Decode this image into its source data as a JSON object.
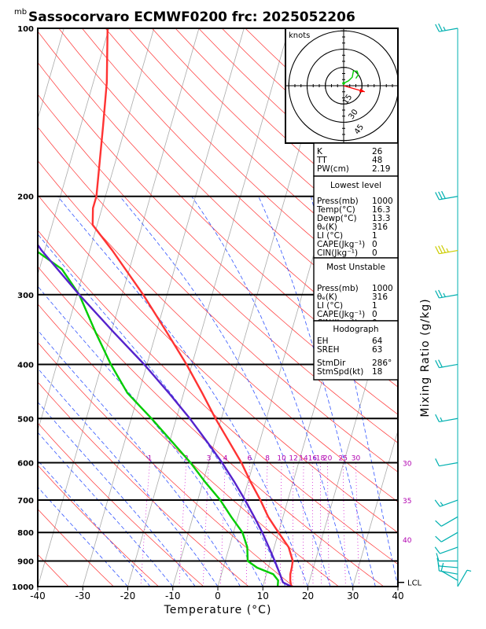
{
  "title": "Sassocorvaro ECMWF0200  frc: 2025052206",
  "pressure_unit_label": "mb",
  "chart_data": {
    "type": "line",
    "subtype": "skew-T log-P sounding",
    "xlabel": "Temperature (°C)",
    "ylabel_right": "Mixing Ratio (g/kg)",
    "xlim": [
      -40,
      40
    ],
    "ylim": [
      1000,
      100
    ],
    "x_ticks": [
      -40,
      -30,
      -20,
      -10,
      0,
      10,
      20,
      30,
      40
    ],
    "y_ticks": [
      100,
      200,
      300,
      400,
      500,
      600,
      700,
      800,
      900,
      1000
    ],
    "mixing_ratio_labels": [
      "1",
      "2",
      "3",
      "4",
      "6",
      "8",
      "10",
      "12",
      "14",
      "16",
      "18",
      "20",
      "25",
      "30"
    ],
    "mixing_ratio_values": [
      1,
      2,
      3,
      4,
      6,
      8,
      10,
      12,
      14,
      16,
      18,
      20,
      25,
      30
    ],
    "thetae_labels": [
      {
        "label": "30",
        "p": 600
      },
      {
        "label": "35",
        "p": 700
      },
      {
        "label": "40",
        "p": 823
      }
    ],
    "lcl_label": "LCL",
    "lcl_pressure": 983,
    "series": [
      {
        "color": "#ff3333",
        "points": [
          {
            "p": 1000,
            "t": 16.3
          },
          {
            "p": 975,
            "t": 15.7
          },
          {
            "p": 950,
            "t": 15.3
          },
          {
            "p": 925,
            "t": 15.2
          },
          {
            "p": 900,
            "t": 15.0
          },
          {
            "p": 850,
            "t": 13.2
          },
          {
            "p": 800,
            "t": 10.0
          },
          {
            "p": 750,
            "t": 6.7
          },
          {
            "p": 700,
            "t": 3.9
          },
          {
            "p": 650,
            "t": 0.6
          },
          {
            "p": 600,
            "t": -2.7
          },
          {
            "p": 550,
            "t": -6.8
          },
          {
            "p": 500,
            "t": -11.3
          },
          {
            "p": 450,
            "t": -15.9
          },
          {
            "p": 400,
            "t": -21.2
          },
          {
            "p": 350,
            "t": -27.7
          },
          {
            "p": 300,
            "t": -35.3
          },
          {
            "p": 250,
            "t": -45.0
          },
          {
            "p": 225,
            "t": -51.0
          },
          {
            "p": 210,
            "t": -52.0
          },
          {
            "p": 200,
            "t": -52.0
          },
          {
            "p": 150,
            "t": -55.0
          },
          {
            "p": 125,
            "t": -57.0
          },
          {
            "p": 100,
            "t": -60.3
          }
        ]
      },
      {
        "color": "#00cc00",
        "points": [
          {
            "p": 1000,
            "t": 13.3
          },
          {
            "p": 975,
            "t": 13.0
          },
          {
            "p": 950,
            "t": 11.5
          },
          {
            "p": 925,
            "t": 7.5
          },
          {
            "p": 900,
            "t": 5.0
          },
          {
            "p": 850,
            "t": 4.0
          },
          {
            "p": 800,
            "t": 2.0
          },
          {
            "p": 750,
            "t": -1.5
          },
          {
            "p": 700,
            "t": -5.0
          },
          {
            "p": 650,
            "t": -9.5
          },
          {
            "p": 600,
            "t": -14.0
          },
          {
            "p": 550,
            "t": -19.5
          },
          {
            "p": 500,
            "t": -25.5
          },
          {
            "p": 450,
            "t": -32.5
          },
          {
            "p": 400,
            "t": -38.0
          },
          {
            "p": 350,
            "t": -43.5
          },
          {
            "p": 300,
            "t": -49.5
          },
          {
            "p": 270,
            "t": -55.0
          },
          {
            "p": 250,
            "t": -62.0
          },
          {
            "p": 200,
            "t": -72.0
          },
          {
            "p": 150,
            "t": -80.0
          },
          {
            "p": 100,
            "t": -90.0
          }
        ]
      },
      {
        "color": "#5522cc",
        "points": [
          {
            "p": 1000,
            "t": 16.3
          },
          {
            "p": 983,
            "t": 14.2
          },
          {
            "p": 950,
            "t": 13.0
          },
          {
            "p": 900,
            "t": 11.0
          },
          {
            "p": 850,
            "t": 8.8
          },
          {
            "p": 800,
            "t": 6.4
          },
          {
            "p": 750,
            "t": 3.6
          },
          {
            "p": 700,
            "t": 0.5
          },
          {
            "p": 650,
            "t": -3.0
          },
          {
            "p": 600,
            "t": -7.0
          },
          {
            "p": 550,
            "t": -11.7
          },
          {
            "p": 500,
            "t": -17.0
          },
          {
            "p": 450,
            "t": -23.3
          },
          {
            "p": 400,
            "t": -30.6
          },
          {
            "p": 350,
            "t": -39.5
          },
          {
            "p": 300,
            "t": -49.5
          },
          {
            "p": 250,
            "t": -60.7
          },
          {
            "p": 200,
            "t": -72.5
          },
          {
            "p": 150,
            "t": -87.0
          },
          {
            "p": 100,
            "t": -107.0
          }
        ]
      }
    ]
  },
  "hodograph": {
    "units_label": "knots",
    "ring_labels": [
      "15",
      "30",
      "45"
    ],
    "ring_values_kt": [
      15,
      30,
      45
    ],
    "trace_kt": [
      [
        0,
        2
      ],
      [
        4,
        4
      ],
      [
        7,
        7
      ],
      [
        8,
        12
      ],
      [
        11,
        12
      ],
      [
        12,
        9
      ],
      [
        10,
        6
      ]
    ],
    "storm_motion_kt": [
      17.3,
      -5.0
    ]
  },
  "indices": {
    "basic": [
      {
        "label": "K",
        "value": "26"
      },
      {
        "label": "TT",
        "value": "48"
      },
      {
        "label": "PW(cm)",
        "value": "2.19"
      }
    ],
    "lowest_level": {
      "header": "Lowest level",
      "rows": [
        {
          "label": "Press(mb)",
          "value": "1000"
        },
        {
          "label": "Temp(°C)",
          "value": "16.3"
        },
        {
          "label": "Dewp(°C)",
          "value": "13.3"
        },
        {
          "label": "θₑ(K)",
          "value": "316"
        },
        {
          "label": "LI (°C)",
          "value": "1"
        },
        {
          "label": "CAPE(Jkg⁻¹)",
          "value": "0"
        },
        {
          "label": "CIN(Jkg⁻¹)",
          "value": "0"
        }
      ]
    },
    "most_unstable": {
      "header": "Most Unstable",
      "rows": [
        {
          "label": "Press(mb)",
          "value": "1000"
        },
        {
          "label": "θₑ(K)",
          "value": "316"
        },
        {
          "label": "LI (°C)",
          "value": "1"
        },
        {
          "label": "CAPE(Jkg⁻¹)",
          "value": "0"
        },
        {
          "label": "CIN(Jkg⁻¹)",
          "value": "0"
        }
      ]
    },
    "hodograph_box": {
      "header": "Hodograph",
      "rows": [
        {
          "label": "EH",
          "value": "64"
        },
        {
          "label": "SREH",
          "value": "63"
        },
        {
          "label": "StmDir",
          "value": "286°"
        },
        {
          "label": "StmSpd(kt)",
          "value": "18"
        }
      ]
    }
  },
  "wind_barbs": [
    {
      "p": 1000,
      "dir": 30,
      "kt": 5
    },
    {
      "p": 975,
      "dir": 300,
      "kt": 10
    },
    {
      "p": 950,
      "dir": 280,
      "kt": 10
    },
    {
      "p": 925,
      "dir": 275,
      "kt": 10
    },
    {
      "p": 900,
      "dir": 270,
      "kt": 10
    },
    {
      "p": 850,
      "dir": 250,
      "kt": 10
    },
    {
      "p": 800,
      "dir": 240,
      "kt": 10
    },
    {
      "p": 750,
      "dir": 240,
      "kt": 10
    },
    {
      "p": 700,
      "dir": 250,
      "kt": 15
    },
    {
      "p": 600,
      "dir": 260,
      "kt": 10
    },
    {
      "p": 500,
      "dir": 260,
      "kt": 15
    },
    {
      "p": 400,
      "dir": 260,
      "kt": 20
    },
    {
      "p": 300,
      "dir": 260,
      "kt": 25
    },
    {
      "p": 250,
      "dir": 260,
      "kt": 35
    },
    {
      "p": 200,
      "dir": 260,
      "kt": 30
    },
    {
      "p": 100,
      "dir": 260,
      "kt": 25
    }
  ],
  "colors": {
    "temperature": "#ff3333",
    "dewpoint": "#00cc00",
    "parcel": "#5522cc",
    "isotherm": "#aaaaaa",
    "dry_adiabat": "#ff3333",
    "moist_adiabat": "#3355ff",
    "mixing_ratio": "#cc00cc",
    "wind_barb": "#00b0b0",
    "wind_barb_jet": "#cccc00"
  }
}
